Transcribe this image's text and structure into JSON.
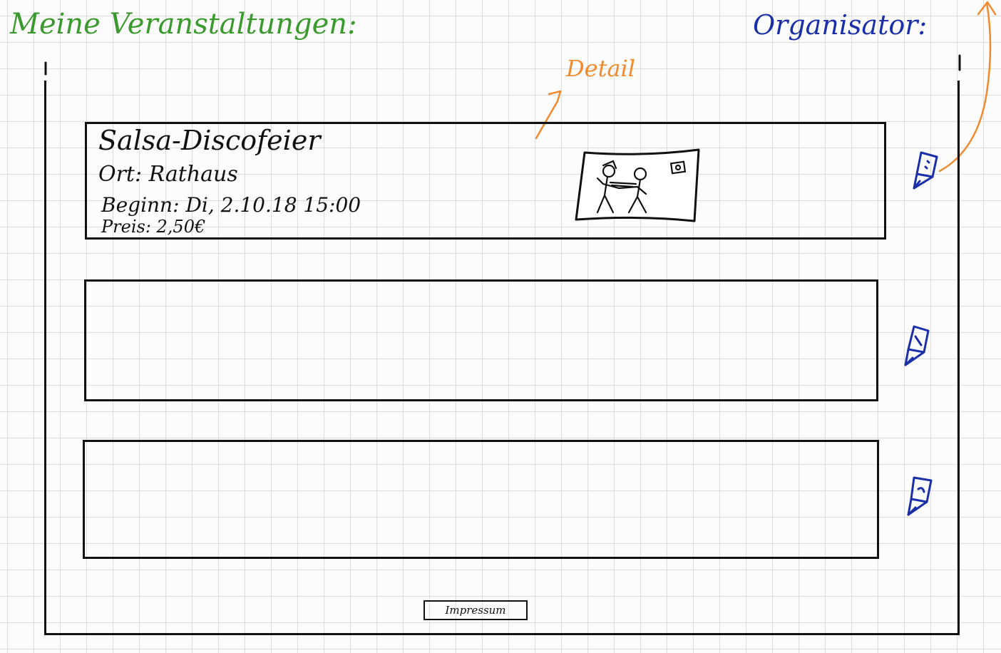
{
  "header": {
    "title": "Meine Veranstaltungen:",
    "role": "Organisator:"
  },
  "annotation": {
    "detail": "Detail"
  },
  "events": [
    {
      "title": "Salsa-Discofeier",
      "location": "Ort: Rathaus",
      "start": "Beginn: Di, 2.10.18   15:00",
      "price": "Preis:   2,50€"
    }
  ],
  "footer": {
    "imprint": "Impressum"
  },
  "colors": {
    "header_title": "#3a9a2e",
    "role_label": "#1a2fa8",
    "annotation": "#f08a2c",
    "edit_icon": "#1a2fa8"
  },
  "icons": [
    "pencil-icon",
    "event-image-sketch",
    "arrow-annotation"
  ]
}
